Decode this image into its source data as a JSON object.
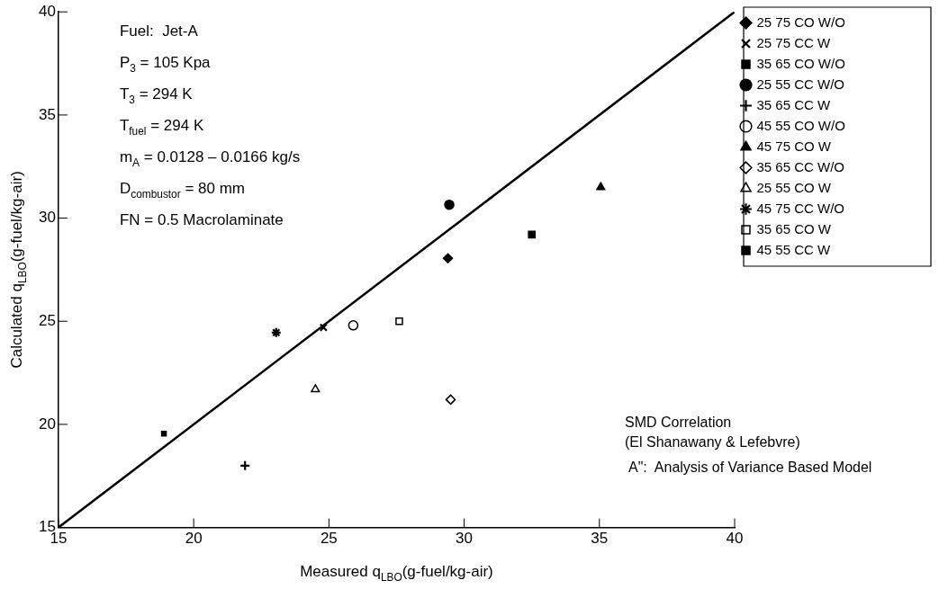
{
  "chart_data": {
    "type": "scatter",
    "xlabel": "Measured q$_{LBO}$(g-fuel/kg-air)",
    "ylabel": "Calculated q$_{LBO}$(g-fuel/kg-air)",
    "annotations": [
      "Fuel:  Jet-A\nP$_{3}$ = 105 Kpa\nT$_{3}$ = 294 K\nT$_{fuel}$ = 294 K\nm$_{A}$ = 0.0128 – 0.0166 kg/s\nD$_{combustor}$ = 80 mm\nFN = 0.5 Macrolaminate",
      "SMD Correlation\n(El Shanawany & Lefebvre)",
      "A\":  Analysis of Variance Based Model"
    ],
    "xlim": [
      15,
      40
    ],
    "ylim": [
      15,
      40
    ],
    "xticks": [
      15,
      20,
      25,
      30,
      35,
      40
    ],
    "yticks": [
      15,
      20,
      25,
      30,
      35,
      40
    ],
    "grid": false,
    "legend": "right",
    "series": [
      {
        "name": "25 75 CO W/O",
        "color": "#000000",
        "marker": "diamond",
        "x": [
          29.4
        ],
        "values": [
          28.05
        ]
      },
      {
        "name": "25 75 CC W",
        "color": "#000000",
        "marker": "cross",
        "x": [
          24.8
        ],
        "values": [
          24.7
        ]
      },
      {
        "name": "35 65 CO W/O",
        "color": "#000000",
        "marker": "square",
        "x": [
          32.5
        ],
        "values": [
          29.2
        ]
      },
      {
        "name": "25 55 CC W/O",
        "color": "#000000",
        "marker": "circle",
        "x": [
          29.45
        ],
        "values": [
          30.65
        ]
      },
      {
        "name": "35 65 CC W",
        "color": "#000000",
        "marker": "cross",
        "x": [
          21.9
        ],
        "values": [
          18.0
        ]
      },
      {
        "name": "45 55 CO W/O",
        "color": "#000000",
        "marker": "circle",
        "x": [
          25.9
        ],
        "values": [
          24.8
        ]
      },
      {
        "name": "45 75 CO W",
        "color": "#000000",
        "marker": "triangle",
        "x": [
          35.05
        ],
        "values": [
          31.5
        ]
      },
      {
        "name": "35 65 CC W/O",
        "color": "#000000",
        "marker": "diamond",
        "x": [
          29.5
        ],
        "values": [
          21.2
        ]
      },
      {
        "name": "25 55 CO W",
        "color": "#000000",
        "marker": "triangle",
        "x": [
          24.5
        ],
        "values": [
          21.7
        ]
      },
      {
        "name": "45 75 CC W/O",
        "color": "#000000",
        "marker": "cross",
        "x": [
          23.05
        ],
        "values": [
          24.45
        ]
      },
      {
        "name": "35 65 CO W",
        "color": "#000000",
        "marker": "square",
        "x": [
          27.6
        ],
        "values": [
          25.0
        ]
      },
      {
        "name": "45 55 CC W",
        "color": "#000000",
        "marker": "square",
        "x": [
          18.9
        ],
        "values": [
          19.55
        ]
      },
      {
        "type": "line",
        "color": "#000000",
        "marker": "none",
        "line_style": "solid",
        "x": [
          15,
          40
        ],
        "values": [
          15,
          40
        ]
      }
    ]
  }
}
